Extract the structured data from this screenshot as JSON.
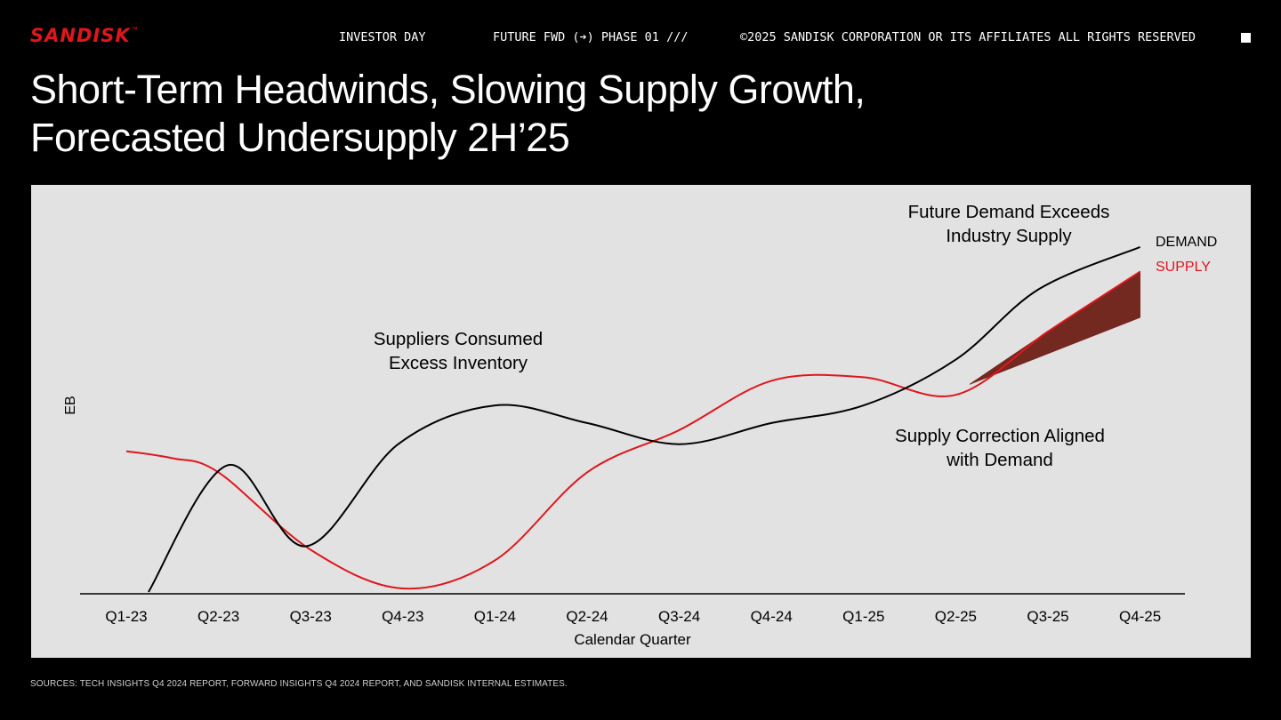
{
  "header": {
    "logo": "SANDISK",
    "logo_tm": "™",
    "event": "INVESTOR DAY",
    "phase": "FUTURE FWD (➔) PHASE 01 ///",
    "copyright": "©2025 SANDISK CORPORATION OR ITS AFFILIATES ALL RIGHTS RESERVED"
  },
  "title": {
    "line1": "Short-Term Headwinds, Slowing Supply Growth,",
    "line2": "Forecasted Undersupply 2H’25"
  },
  "chart_data": {
    "type": "line",
    "categories": [
      "Q1-23",
      "Q2-23",
      "Q3-23",
      "Q4-23",
      "Q1-24",
      "Q2-24",
      "Q3-24",
      "Q4-24",
      "Q1-25",
      "Q2-25",
      "Q3-25",
      "Q4-25"
    ],
    "xlabel": "Calendar Quarter",
    "ylabel": "EB",
    "ylim": [
      0,
      100
    ],
    "grid": false,
    "series": [
      {
        "name": "DEMAND",
        "color": "#000000",
        "x": [
          0.24,
          1.1,
          1.95,
          2.95,
          4.0,
          5.0,
          6.0,
          7.0,
          8.0,
          9.0,
          9.9,
          11.0
        ],
        "values": [
          0,
          36,
          13,
          42,
          53,
          48,
          42,
          48,
          53,
          66,
          86,
          98
        ]
      },
      {
        "name": "SUPPLY",
        "color": "#e0161d",
        "x": [
          0,
          0.5,
          1.0,
          2.0,
          3.0,
          4.0,
          5.0,
          6.0,
          7.0,
          8.0,
          9.0,
          10.0,
          11.0
        ],
        "values": [
          40,
          38,
          34,
          12,
          1,
          9,
          34,
          46,
          60,
          61,
          56,
          74,
          91
        ],
        "band_low": {
          "x": [
            9.15,
            11.0
          ],
          "values": [
            59,
            78
          ]
        }
      }
    ],
    "annotations": [
      {
        "text_line1": "Suppliers Consumed",
        "text_line2": "Excess Inventory"
      },
      {
        "text_line1": "Future Demand Exceeds",
        "text_line2": "Industry Supply"
      },
      {
        "text_line1": "Supply Correction Aligned",
        "text_line2": "with Demand"
      }
    ],
    "legend": {
      "position": "right-end-of-lines",
      "demand_label": "DEMAND",
      "supply_label": "SUPPLY"
    }
  },
  "footer": {
    "source": "SOURCES: TECH INSIGHTS Q4 2024 REPORT, FORWARD INSIGHTS Q4 2024 REPORT, AND SANDISK INTERNAL ESTIMATES."
  }
}
